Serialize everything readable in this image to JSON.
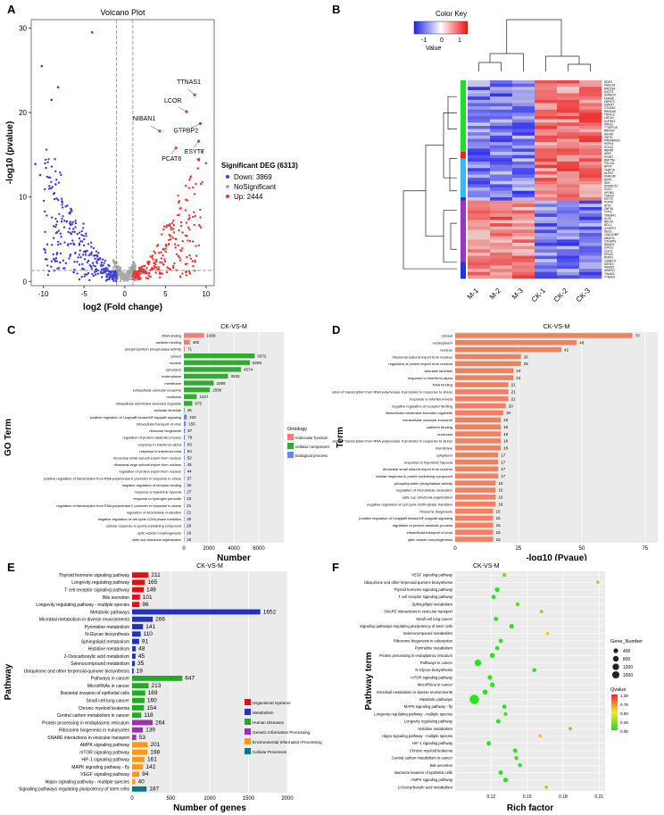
{
  "panel_labels": {
    "A": "A",
    "B": "B",
    "C": "C",
    "D": "D",
    "E": "E",
    "F": "F"
  },
  "chart_data": [
    {
      "id": "A",
      "type": "scatter",
      "title": "Volcano Plot",
      "xlabel": "log2 (Fold change)",
      "ylabel": "-log10 (pvalue)",
      "xlim": [
        -11.5,
        11
      ],
      "ylim": [
        -0.5,
        31
      ],
      "xticks": [
        -10,
        -5,
        0,
        5,
        10
      ],
      "yticks": [
        0,
        10,
        20,
        30
      ],
      "thresholds": {
        "x": [
          -1,
          1
        ],
        "y": 1.3
      },
      "legend": {
        "title": "Significant DEG (6313)",
        "items": [
          "Down: 3869",
          "NoSignificant",
          "Up: 2444"
        ]
      },
      "colors": {
        "down": "#3b3bdd",
        "ns": "#a9a9a9",
        "up": "#ee3333"
      },
      "counts": {
        "down": 3869,
        "ns": 0,
        "up": 2444
      },
      "labeled_points": [
        {
          "label": "TTNAS1",
          "x": 8.6,
          "y": 22.1
        },
        {
          "label": "LCOR",
          "x": 7.6,
          "y": 20.1
        },
        {
          "label": "NIBAN1",
          "x": 4.3,
          "y": 17.8
        },
        {
          "label": "GTPBP2",
          "x": 9.3,
          "y": 18.7
        },
        {
          "label": "PCAT6",
          "x": 6.3,
          "y": 15.8
        },
        {
          "label": "ESYT2",
          "x": 9.1,
          "y": 16.6
        }
      ],
      "outliers": [
        {
          "x": -4.0,
          "y": 29.5
        },
        {
          "x": -10.2,
          "y": 25.5
        },
        {
          "x": -8.2,
          "y": 23.0
        },
        {
          "x": -9.0,
          "y": 21.5
        },
        {
          "x": -11.0,
          "y": 13.9
        },
        {
          "x": -10.4,
          "y": 12.6
        },
        {
          "x": -8.5,
          "y": 11.5
        },
        {
          "x": 10.0,
          "y": 14.0
        },
        {
          "x": 9.0,
          "y": 13.4
        }
      ]
    },
    {
      "id": "B",
      "type": "heatmap",
      "color_key": {
        "title": "Color Key",
        "xlabel": "Value",
        "ticks": [
          -1,
          0,
          1
        ]
      },
      "columns": [
        "M-1",
        "M-2",
        "M-3",
        "CK-1",
        "CK-2",
        "CK-3"
      ],
      "rows": [
        "DDES",
        "FNDLA5",
        "RAD23A",
        "DAST3",
        "SMNE25",
        "FAHMS",
        "ZNF573",
        "DMHST",
        "GTN2A2",
        "RBSDA5",
        "TNFA12",
        "LMCLH",
        "SUPAE3",
        "PRR10",
        "TTGEFUS",
        "RBN022",
        "ASV4E",
        "ZNHTL",
        "PRRAMR1A",
        "HNF4A",
        "SOX21",
        "RBPA9",
        "A5SC",
        "SYNE7",
        "BNFT54",
        "FSL1D1",
        "NPNT",
        "TABP1A",
        "ALPK3",
        "ENAH38",
        "DPP6",
        "SDS",
        "SEMACZC",
        "GLDC",
        "APOB3",
        "TMEZO",
        "ESYT2",
        "PCAT6",
        "ATF4",
        "ZNF36",
        "TFPI2",
        "TMEM41",
        "CLFS",
        "RBCK1",
        "BGL1",
        "GSDPF2",
        "DES2",
        "LSALE0BP",
        "UBAP2L",
        "OTHHPS",
        "NIBAN1",
        "CIRO3",
        "CISO1",
        "DRA21",
        "RNF91",
        "ZSIBPL5",
        "ASH2S",
        "PRMS5",
        "ARAP12",
        "YIN4M2",
        "TTNAS1"
      ],
      "row_groups": [
        {
          "color": "#22dd22",
          "n": 22
        },
        {
          "color": "#ee2222",
          "n": 2
        },
        {
          "color": "#33bbee",
          "n": 12
        },
        {
          "color": "#3333cc",
          "n": 1
        },
        {
          "color": "#9933cc",
          "n": 19
        },
        {
          "color": "#2233dd",
          "n": 5
        }
      ]
    },
    {
      "id": "C",
      "type": "bar",
      "title": "CK-VS-M",
      "xlabel": "Number",
      "ylabel": "GO Term",
      "xlim": [
        0,
        8000
      ],
      "xticks": [
        0,
        2000,
        4000,
        6000
      ],
      "legend": {
        "title": "Ontology",
        "items": [
          "molecular function",
          "cellular component",
          "biological process"
        ]
      },
      "colors": {
        "molecular function": "#f08070",
        "cellular component": "#33aa33",
        "biological process": "#6688ee"
      },
      "categories": [
        "RNA binding",
        "cadherin binding",
        "phosphoprotein phosphatase activity",
        "cytosol",
        "nucleus",
        "cytoplasm",
        "nucleoplasm",
        "membrane",
        "extracellular vesicular exosome",
        "nucleolus",
        "intracellular membrane-bounded organelle",
        "annulate lamellae",
        "positive regulation of I-kappaB kinase/NF-kappaB signaling",
        "intracellular transport of virus",
        "ribosome biogenesis",
        "regulation of protein catabolic process",
        "response to interferon-alpha",
        "response to interferon-beta",
        "ribosomal small subunit export from nucleus",
        "ribosomal large subunit export from nucleus",
        "regulation of protein export from nucleus",
        "positive regulation of transcription from RNA polymerase II promoter in response to stress",
        "negative regulation of receptor binding",
        "response to hypotonic hypoxia",
        "response to hydrogen peroxide",
        "regulation of transcription from RNA polymerase II promoter in response to stress",
        "regulation of microtubule nucleation",
        "negative regulation of cell cycle G2/M phase transition",
        "cellular response to purine-containing compound",
        "optic vesicle morphogenesis",
        "optic cup structural organization"
      ],
      "values": [
        1609,
        482,
        71,
        5672,
        5289,
        4574,
        3533,
        2389,
        2090,
        1027,
        675,
        46,
        234,
        155,
        87,
        78,
        63,
        64,
        52,
        45,
        44,
        37,
        32,
        27,
        23,
        21,
        21,
        20,
        20,
        16,
        16
      ],
      "groups": [
        "molecular function",
        "molecular function",
        "molecular function",
        "cellular component",
        "cellular component",
        "cellular component",
        "cellular component",
        "cellular component",
        "cellular component",
        "cellular component",
        "cellular component",
        "cellular component",
        "biological process",
        "biological process",
        "biological process",
        "biological process",
        "biological process",
        "biological process",
        "biological process",
        "biological process",
        "biological process",
        "biological process",
        "biological process",
        "biological process",
        "biological process",
        "biological process",
        "biological process",
        "biological process",
        "biological process",
        "biological process",
        "biological process"
      ]
    },
    {
      "id": "D",
      "type": "bar",
      "title": "CK-VS-M",
      "xlabel": "-log10 (Pvaue)",
      "ylabel": "Term",
      "xlim": [
        0,
        80
      ],
      "xticks": [
        0,
        25,
        50,
        75
      ],
      "categories": [
        "cytosol",
        "nucleoplasm",
        "nucleus",
        "ribosomal subunit export from nucleus",
        "regulation of protein export from nucleus",
        "annulate lamellae",
        "response to interferon-alpha",
        "RNA binding",
        "positive regulation of transcription from RNA polymerase II promoter in response to stress",
        "response to interferon-beta",
        "negative regulation of receptor binding",
        "intracellular membrane-bounded organelle",
        "extracellular vesicular exosome",
        "cadherin binding",
        "nucleolus",
        "negative regulation of transcription from RNA polymerase II promoter in response to stress",
        "membrane",
        "cytoplasm",
        "response to hypotonic hypoxia",
        "ribosomal small subunit export from nucleus",
        "cellular response to purine-containing compound",
        "phosphoprotein phosphatase activity",
        "regulation of microtubule nucleation",
        "optic cup structural organization",
        "negative regulation of cell cycle G2/M phase transition",
        "ribosome biogenesis",
        "positive regulation of I-kappaB kinase/NF-kappaB signaling",
        "regulation of protein catabolic process",
        "intracellular transport of virus",
        "optic vesicle morphogenesis"
      ],
      "values": [
        70,
        48,
        42,
        26,
        26,
        23,
        23,
        21,
        21,
        21,
        20,
        19,
        18,
        18,
        18,
        18,
        18,
        17,
        17,
        17,
        17,
        16,
        16,
        16,
        16,
        15,
        15,
        15,
        15,
        15
      ],
      "color": "#f08060"
    },
    {
      "id": "E",
      "type": "bar",
      "title": "CK-VS-M",
      "xlabel": "Number of genes",
      "ylabel": "Pathway",
      "xlim": [
        0,
        2000
      ],
      "xticks": [
        0,
        500,
        1000,
        1500,
        2000
      ],
      "legend": {
        "items": [
          "Organismal Systems",
          "Metabolism",
          "Human Diseases",
          "Genetic Information Processing",
          "Environmental Information Processing",
          "Cellular Processes"
        ]
      },
      "colors": {
        "Organismal Systems": "#dd1111",
        "Metabolism": "#2233bb",
        "Human Diseases": "#22aa22",
        "Genetic Information Processing": "#9933aa",
        "Environmental Information Processing": "#ff9911",
        "Cellular Processes": "#117788"
      },
      "categories": [
        "Thyroid hormone signaling pathway",
        "Longevity regulating pathway",
        "T cell receptor signaling pathway",
        "Bile secretion",
        "Longevity regulating pathway - multiple species",
        "Metabolic pathways",
        "Microbial metabolism in diverse environments",
        "Pyrimidine metabolism",
        "N-Glycan biosynthesis",
        "Sphingolipid metabolism",
        "Histidine metabolism",
        "2-Oxocarboxylic acid metabolism",
        "Selenocompound metabolism",
        "Ubiquinone and other terpenoid-quinone biosynthesis",
        "Pathways in cancer",
        "MicroRNAs in cancer",
        "Bacterial invasion of epithelial cells",
        "Small cell lung cancer",
        "Chronic myeloid leukemia",
        "Central carbon metabolism in cancer",
        "Protein processing in endoplasmic reticulum",
        "Ribosome biogenesis in eukaryotes",
        "SNARE interactions in vesicular transport",
        "AMPK signaling pathway",
        "mTOR signaling pathway",
        "HIF-1 signaling pathway",
        "MAPK signaling pathway - fly",
        "VEGF signaling pathway",
        "Hippo signaling pathway - multiple species",
        "Signaling pathways regulating pluripotency of stem cells"
      ],
      "values": [
        211,
        165,
        149,
        101,
        96,
        1652,
        266,
        141,
        110,
        91,
        48,
        45,
        35,
        19,
        647,
        213,
        169,
        160,
        154,
        118,
        264,
        139,
        53,
        201,
        198,
        161,
        142,
        94,
        40,
        187
      ],
      "groups": [
        "Organismal Systems",
        "Organismal Systems",
        "Organismal Systems",
        "Organismal Systems",
        "Organismal Systems",
        "Metabolism",
        "Metabolism",
        "Metabolism",
        "Metabolism",
        "Metabolism",
        "Metabolism",
        "Metabolism",
        "Metabolism",
        "Metabolism",
        "Human Diseases",
        "Human Diseases",
        "Human Diseases",
        "Human Diseases",
        "Human Diseases",
        "Human Diseases",
        "Genetic Information Processing",
        "Genetic Information Processing",
        "Genetic Information Processing",
        "Environmental Information Processing",
        "Environmental Information Processing",
        "Environmental Information Processing",
        "Environmental Information Processing",
        "Environmental Information Processing",
        "Environmental Information Processing",
        "Cellular Processes"
      ]
    },
    {
      "id": "F",
      "type": "scatter",
      "title": "CK-VS-M",
      "xlabel": "Rich factor",
      "ylabel": "Pathway term",
      "xlim": [
        0.09,
        0.215
      ],
      "xticks": [
        0.12,
        0.15,
        0.18,
        0.21
      ],
      "size_legend": {
        "title": "Gene_Number",
        "items": [
          400,
          800,
          1200,
          1600
        ]
      },
      "color_legend": {
        "title": "Qvalue",
        "ticks": [
          "1.00",
          "0.75",
          "0.50",
          "0.25",
          "0.00"
        ]
      },
      "categories": [
        "VEGF signaling pathway",
        "Ubiquinone and other terpenoid-quinone biosynthesis",
        "Thyroid hormone signaling pathway",
        "T cell receptor signaling pathway",
        "Sphingolipid metabolism",
        "SNARE interactions in vesicular transport",
        "Small cell lung cancer",
        "Signaling pathways regulating pluripotency of stem cells",
        "Selenocompound metabolism",
        "Ribosome biogenesis in eukaryotes",
        "Pyrimidine metabolism",
        "Protein processing in endoplasmic reticulum",
        "Pathways in cancer",
        "N-Glycan biosynthesis",
        "mTOR signaling pathway",
        "MicroRNAs in cancer",
        "Microbial metabolism in diverse environments",
        "Metabolic pathways",
        "MAPK signaling pathway - fly",
        "Longevity regulating pathway - multiple species",
        "Longevity regulating pathway",
        "Histidine metabolism",
        "Hippo signaling pathway - multiple species",
        "HIF-1 signaling pathway",
        "Chronic myeloid leukemia",
        "Central carbon metabolism in cancer",
        "Bile secretion",
        "Bacterial invasion of epithelial cells",
        "AMPK signaling pathway",
        "2-Oxocarboxylic acid metabolism"
      ],
      "x": [
        0.131,
        0.209,
        0.125,
        0.122,
        0.142,
        0.162,
        0.124,
        0.137,
        0.167,
        0.128,
        0.125,
        0.121,
        0.109,
        0.156,
        0.119,
        0.121,
        0.115,
        0.106,
        0.131,
        0.132,
        0.126,
        0.186,
        0.161,
        0.118,
        0.14,
        0.141,
        0.144,
        0.128,
        0.132,
        0.166
      ],
      "gene_number": [
        94,
        19,
        211,
        149,
        91,
        53,
        160,
        187,
        35,
        139,
        141,
        264,
        647,
        110,
        198,
        213,
        266,
        1652,
        142,
        96,
        165,
        48,
        40,
        161,
        154,
        118,
        101,
        169,
        201,
        45
      ],
      "qvalue": [
        0.02,
        0.02,
        0.0,
        0.0,
        0.01,
        0.03,
        0.0,
        0.0,
        0.05,
        0.0,
        0.0,
        0.0,
        0.0,
        0.0,
        0.0,
        0.0,
        0.0,
        0.0,
        0.0,
        0.01,
        0.0,
        0.02,
        0.05,
        0.0,
        0.0,
        0.01,
        0.0,
        0.0,
        0.0,
        0.03
      ]
    }
  ]
}
